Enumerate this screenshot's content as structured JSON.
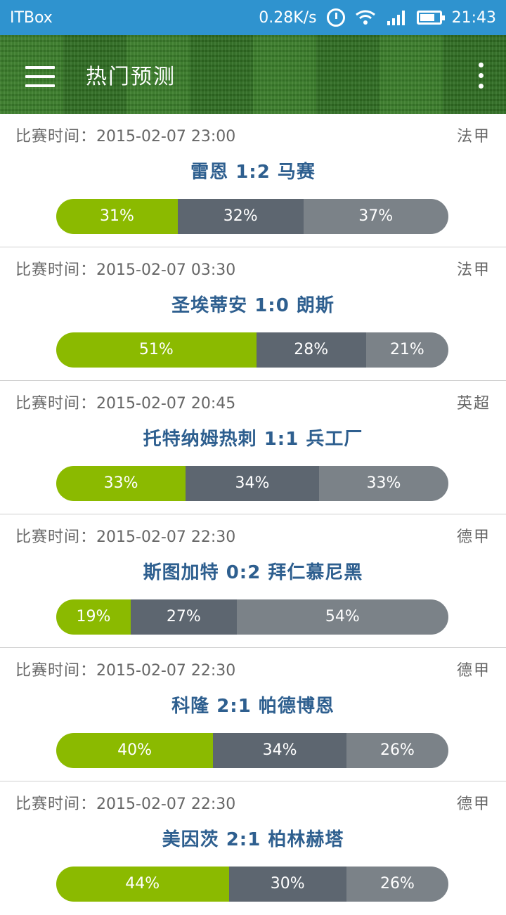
{
  "status_bar": {
    "carrier": "ITBox",
    "speed": "0.28K/s",
    "time": "21:43",
    "icons": [
      "alarm-icon",
      "wifi-icon",
      "signal-icon",
      "battery-icon"
    ]
  },
  "app_bar": {
    "title": "热门预测",
    "menu_icon": "hamburger-menu-icon",
    "more_icon": "more-vertical-icon"
  },
  "colors": {
    "win": "#8bba00",
    "draw": "#5d6670",
    "lose": "#7b8288",
    "status_bar": "#2f93cf",
    "team_text": "#2e5f8f"
  },
  "time_label": "比赛时间：",
  "matches": [
    {
      "time": "2015-02-07 23:00",
      "league": "法甲",
      "teams": "雷恩 1:2 马赛",
      "win": "31%",
      "draw": "32%",
      "lose": "37%"
    },
    {
      "time": "2015-02-07 03:30",
      "league": "法甲",
      "teams": "圣埃蒂安 1:0 朗斯",
      "win": "51%",
      "draw": "28%",
      "lose": "21%"
    },
    {
      "time": "2015-02-07 20:45",
      "league": "英超",
      "teams": "托特纳姆热刺 1:1 兵工厂",
      "win": "33%",
      "draw": "34%",
      "lose": "33%"
    },
    {
      "time": "2015-02-07 22:30",
      "league": "德甲",
      "teams": "斯图加特 0:2 拜仁慕尼黑",
      "win": "19%",
      "draw": "27%",
      "lose": "54%"
    },
    {
      "time": "2015-02-07 22:30",
      "league": "德甲",
      "teams": "科隆 2:1 帕德博恩",
      "win": "40%",
      "draw": "34%",
      "lose": "26%"
    },
    {
      "time": "2015-02-07 22:30",
      "league": "德甲",
      "teams": "美因茨 2:1 柏林赫塔",
      "win": "44%",
      "draw": "30%",
      "lose": "26%"
    }
  ]
}
